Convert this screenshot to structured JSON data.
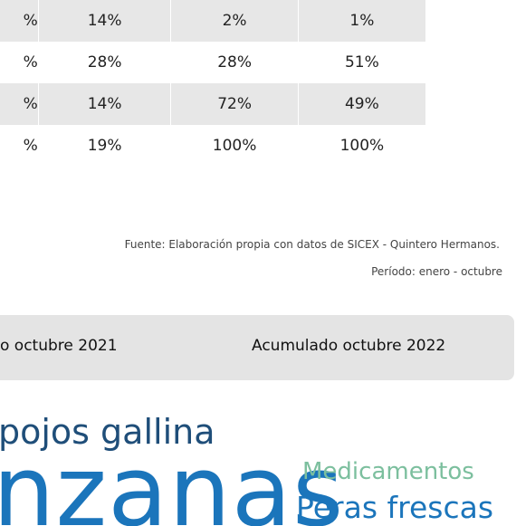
{
  "table": {
    "rows": [
      [
        "%",
        "14%",
        "2%",
        "1%"
      ],
      [
        "%",
        "28%",
        "28%",
        "51%"
      ],
      [
        "%",
        "14%",
        "72%",
        "49%"
      ],
      [
        "%",
        "19%",
        "100%",
        "100%"
      ]
    ]
  },
  "notes": {
    "source": "Fuente: Elaboración propia con datos de SICEX - Quintero Hermanos.",
    "period": "Período: enero -  octubre"
  },
  "header_bar": [
    "o octubre 2021",
    "Acumulado octubre 2022"
  ],
  "word_cloud": [
    "pojos gallina",
    "nzanas",
    "Medicamentos",
    "Peras frescas"
  ]
}
